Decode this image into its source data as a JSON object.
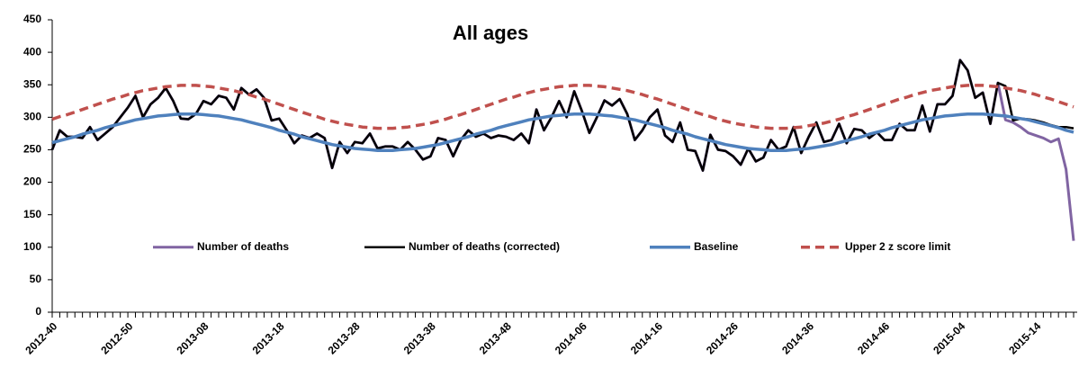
{
  "chart_data": {
    "type": "line",
    "title": "All ages",
    "categories": [
      "2012-40",
      null,
      null,
      null,
      null,
      null,
      null,
      null,
      null,
      null,
      "2012-50",
      null,
      null,
      null,
      null,
      null,
      null,
      null,
      null,
      null,
      "2013-08",
      null,
      null,
      null,
      null,
      null,
      null,
      null,
      null,
      null,
      "2013-18",
      null,
      null,
      null,
      null,
      null,
      null,
      null,
      null,
      null,
      "2013-28",
      null,
      null,
      null,
      null,
      null,
      null,
      null,
      null,
      null,
      "2013-38",
      null,
      null,
      null,
      null,
      null,
      null,
      null,
      null,
      null,
      "2013-48",
      null,
      null,
      null,
      null,
      null,
      null,
      null,
      null,
      null,
      "2014-06",
      null,
      null,
      null,
      null,
      null,
      null,
      null,
      null,
      null,
      "2014-16",
      null,
      null,
      null,
      null,
      null,
      null,
      null,
      null,
      null,
      "2014-26",
      null,
      null,
      null,
      null,
      null,
      null,
      null,
      null,
      null,
      "2014-36",
      null,
      null,
      null,
      null,
      null,
      null,
      null,
      null,
      null,
      "2014-46",
      null,
      null,
      null,
      null,
      null,
      null,
      null,
      null,
      null,
      "2015-04",
      null,
      null,
      null,
      null,
      null,
      null,
      null,
      null,
      null,
      "2015-14",
      null,
      null,
      null,
      null,
      null
    ],
    "series": [
      {
        "name": "Number of deaths",
        "color": "#8064a2",
        "width": 3,
        "values": [
          250,
          280,
          270,
          270,
          268,
          285,
          265,
          275,
          285,
          300,
          315,
          333,
          300,
          320,
          330,
          345,
          325,
          298,
          297,
          305,
          325,
          320,
          333,
          330,
          312,
          345,
          335,
          343,
          330,
          295,
          298,
          280,
          260,
          272,
          268,
          275,
          268,
          222,
          262,
          245,
          262,
          260,
          275,
          252,
          255,
          255,
          250,
          262,
          250,
          235,
          240,
          268,
          265,
          240,
          265,
          280,
          270,
          275,
          268,
          272,
          270,
          265,
          275,
          260,
          312,
          280,
          300,
          325,
          300,
          340,
          310,
          276,
          300,
          326,
          318,
          328,
          305,
          265,
          280,
          300,
          312,
          272,
          262,
          292,
          250,
          248,
          218,
          273,
          250,
          248,
          240,
          227,
          252,
          232,
          238,
          265,
          250,
          255,
          285,
          245,
          270,
          292,
          262,
          265,
          290,
          260,
          282,
          280,
          268,
          277,
          265,
          265,
          290,
          280,
          280,
          318,
          278,
          320,
          320,
          333,
          388,
          372,
          330,
          338,
          290,
          353,
          296,
          292,
          285,
          276,
          272,
          268,
          262,
          267,
          220,
          110
        ]
      },
      {
        "name": "Number of deaths (corrected)",
        "color": "#000000",
        "width": 2.5,
        "values": [
          250,
          280,
          270,
          270,
          268,
          285,
          265,
          275,
          285,
          300,
          315,
          333,
          300,
          320,
          330,
          345,
          325,
          298,
          297,
          305,
          325,
          320,
          333,
          330,
          312,
          345,
          335,
          343,
          330,
          295,
          298,
          280,
          260,
          272,
          268,
          275,
          268,
          222,
          262,
          245,
          262,
          260,
          275,
          252,
          255,
          255,
          250,
          262,
          250,
          235,
          240,
          268,
          265,
          240,
          265,
          280,
          270,
          275,
          268,
          272,
          270,
          265,
          275,
          260,
          312,
          280,
          300,
          325,
          300,
          340,
          310,
          276,
          300,
          326,
          318,
          328,
          305,
          265,
          280,
          300,
          312,
          272,
          262,
          292,
          250,
          248,
          218,
          273,
          250,
          248,
          240,
          227,
          252,
          232,
          238,
          265,
          250,
          255,
          285,
          245,
          270,
          292,
          262,
          265,
          290,
          260,
          282,
          280,
          268,
          277,
          265,
          265,
          290,
          280,
          280,
          318,
          278,
          320,
          320,
          333,
          388,
          372,
          330,
          338,
          290,
          353,
          348,
          295,
          298,
          297,
          295,
          292,
          288,
          285,
          285,
          283
        ]
      },
      {
        "name": "Baseline",
        "color": "#4f81bd",
        "width": 3.5,
        "values": [
          261,
          264,
          267,
          270,
          274,
          277,
          280,
          284,
          287,
          290,
          293,
          296,
          298,
          300,
          302,
          303,
          304,
          305,
          305,
          305,
          304,
          303,
          302,
          300,
          298,
          296,
          293,
          290,
          287,
          284,
          280,
          277,
          274,
          270,
          267,
          264,
          261,
          258,
          256,
          254,
          252,
          251,
          250,
          249,
          249,
          249,
          250,
          251,
          252,
          254,
          256,
          258,
          261,
          264,
          267,
          270,
          274,
          277,
          280,
          284,
          287,
          290,
          293,
          296,
          298,
          300,
          302,
          303,
          304,
          305,
          305,
          305,
          304,
          303,
          302,
          300,
          298,
          296,
          293,
          290,
          287,
          284,
          280,
          277,
          274,
          270,
          267,
          264,
          261,
          258,
          256,
          254,
          252,
          251,
          250,
          249,
          249,
          249,
          250,
          251,
          252,
          254,
          256,
          258,
          261,
          264,
          267,
          270,
          274,
          277,
          280,
          284,
          287,
          290,
          293,
          296,
          298,
          300,
          302,
          303,
          304,
          305,
          305,
          305,
          304,
          303,
          302,
          300,
          298,
          296,
          293,
          290,
          287,
          284,
          280,
          277
        ]
      },
      {
        "name": "Upper 2 z score limit",
        "color": "#c0504d",
        "width": 3.5,
        "dashed": true,
        "values": [
          297,
          301,
          304,
          308,
          312,
          316,
          320,
          324,
          328,
          331,
          335,
          338,
          341,
          343,
          345,
          347,
          348,
          349,
          349,
          349,
          348,
          347,
          345,
          343,
          341,
          338,
          335,
          331,
          328,
          324,
          320,
          316,
          312,
          308,
          304,
          301,
          297,
          294,
          291,
          289,
          287,
          285,
          284,
          283,
          283,
          283,
          284,
          285,
          287,
          289,
          291,
          294,
          297,
          301,
          304,
          308,
          312,
          316,
          320,
          324,
          328,
          331,
          335,
          338,
          341,
          343,
          345,
          347,
          348,
          349,
          349,
          349,
          348,
          347,
          345,
          343,
          341,
          338,
          335,
          331,
          328,
          324,
          320,
          316,
          312,
          308,
          304,
          301,
          297,
          294,
          291,
          289,
          287,
          285,
          284,
          283,
          283,
          283,
          284,
          285,
          287,
          289,
          291,
          294,
          297,
          301,
          304,
          308,
          312,
          316,
          320,
          324,
          328,
          331,
          335,
          338,
          341,
          343,
          345,
          347,
          348,
          349,
          349,
          349,
          348,
          347,
          345,
          343,
          341,
          338,
          335,
          331,
          328,
          324,
          320,
          316
        ]
      }
    ],
    "ylim": [
      0,
      450
    ],
    "yticks": [
      0,
      50,
      100,
      150,
      200,
      250,
      300,
      350,
      400,
      450
    ],
    "grid": false
  }
}
